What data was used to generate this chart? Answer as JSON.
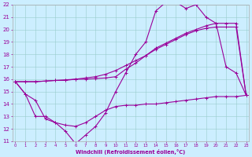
{
  "background_color": "#cceeff",
  "grid_color": "#99cccc",
  "line_color": "#990099",
  "xlabel": "Windchill (Refroidissement éolien,°C)",
  "x": [
    0,
    1,
    2,
    3,
    4,
    5,
    6,
    7,
    8,
    9,
    10,
    11,
    12,
    13,
    14,
    15,
    16,
    17,
    18,
    19,
    20,
    21,
    22,
    23
  ],
  "y_top": [
    15.8,
    14.8,
    14.3,
    12.8,
    12.5,
    11.8,
    10.8,
    11.5,
    12.2,
    13.3,
    15.0,
    16.5,
    18.0,
    19.0,
    21.5,
    22.2,
    22.2,
    21.7,
    22.0,
    21.0,
    20.5,
    17.0,
    16.5,
    14.7
  ],
  "y_diag1": [
    15.8,
    15.8,
    15.8,
    15.85,
    15.9,
    15.9,
    16.0,
    16.0,
    16.05,
    16.1,
    16.2,
    16.8,
    17.3,
    17.9,
    18.5,
    18.9,
    19.3,
    19.7,
    20.0,
    20.3,
    20.5,
    20.5,
    20.5,
    14.7
  ],
  "y_diag2": [
    15.8,
    15.8,
    15.8,
    15.85,
    15.9,
    15.95,
    16.0,
    16.1,
    16.2,
    16.4,
    16.7,
    17.1,
    17.5,
    17.9,
    18.4,
    18.8,
    19.2,
    19.6,
    19.9,
    20.1,
    20.2,
    20.2,
    20.2,
    14.7
  ],
  "y_bot": [
    15.8,
    14.8,
    13.0,
    13.0,
    12.5,
    12.3,
    12.2,
    12.5,
    13.0,
    13.5,
    13.8,
    13.9,
    13.9,
    14.0,
    14.0,
    14.1,
    14.2,
    14.3,
    14.4,
    14.5,
    14.6,
    14.6,
    14.6,
    14.7
  ],
  "ylim": [
    11,
    22
  ],
  "xlim": [
    -0.3,
    23.3
  ],
  "yticks": [
    11,
    12,
    13,
    14,
    15,
    16,
    17,
    18,
    19,
    20,
    21,
    22
  ],
  "xticks": [
    0,
    1,
    2,
    3,
    4,
    5,
    6,
    7,
    8,
    9,
    10,
    11,
    12,
    13,
    14,
    15,
    16,
    17,
    18,
    19,
    20,
    21,
    22,
    23
  ]
}
